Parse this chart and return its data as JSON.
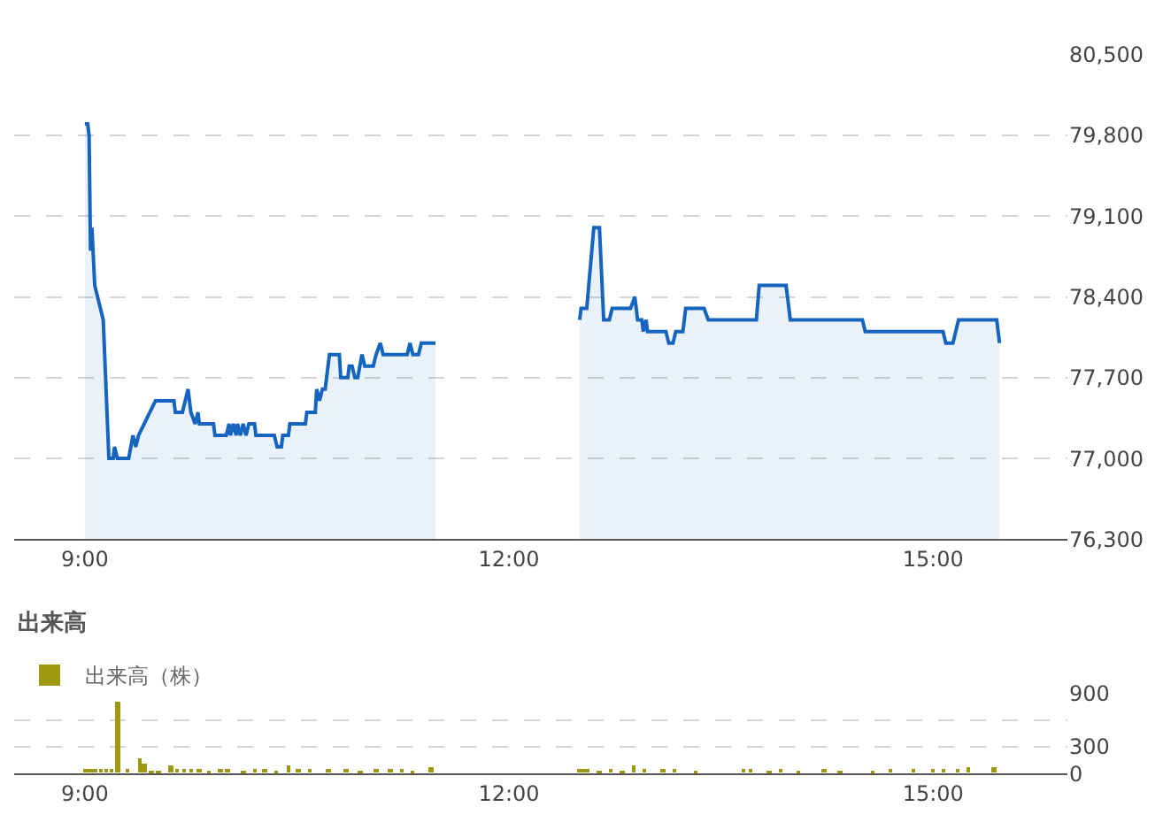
{
  "chart_data": [
    {
      "type": "area",
      "xlim": [
        8.5,
        15.95
      ],
      "xticks": [
        {
          "value": 9,
          "label": "9:00"
        },
        {
          "value": 12,
          "label": "12:00"
        },
        {
          "value": 15,
          "label": "15:00"
        }
      ],
      "ylim": [
        76300,
        80500
      ],
      "yticks": [
        {
          "value": 76300,
          "label": "76,300"
        },
        {
          "value": 77000,
          "label": "77,000"
        },
        {
          "value": 77700,
          "label": "77,700"
        },
        {
          "value": 78400,
          "label": "78,400"
        },
        {
          "value": 79100,
          "label": "79,100"
        },
        {
          "value": 79800,
          "label": "79,800"
        },
        {
          "value": 80500,
          "label": "80,500"
        }
      ],
      "grid": "y",
      "legend": false,
      "series": [
        {
          "color": "#1565c0",
          "x": [
            9.0,
            9.02,
            9.03,
            9.04,
            9.05,
            9.07,
            9.13,
            9.17,
            9.2,
            9.21,
            9.23,
            9.31,
            9.34,
            9.36,
            9.38,
            9.42,
            9.46,
            9.5,
            9.53,
            9.63,
            9.64,
            9.69,
            9.73,
            9.75,
            9.78,
            9.8,
            9.81,
            9.91,
            9.92,
            10.0,
            10.02,
            10.03,
            10.05,
            10.07,
            10.08,
            10.1,
            10.12,
            10.14,
            10.16,
            10.2,
            10.21,
            10.34,
            10.36,
            10.39,
            10.4,
            10.44,
            10.45,
            10.56,
            10.57,
            10.63,
            10.64,
            10.66,
            10.68,
            10.7,
            10.73,
            10.8,
            10.81,
            10.86,
            10.87,
            10.89,
            10.91,
            10.93,
            10.96,
            10.98,
            11.04,
            11.06,
            11.09,
            11.11,
            11.28,
            11.3,
            11.32,
            11.36,
            11.38,
            11.48,
            12.0,
            12.5,
            12.51,
            12.55,
            12.6,
            12.64,
            12.67,
            12.71,
            12.73,
            12.86,
            12.89,
            12.91,
            12.94,
            12.95,
            12.97,
            12.98,
            13.11,
            13.13,
            13.16,
            13.18,
            13.23,
            13.25,
            13.38,
            13.41,
            13.75,
            13.77,
            13.96,
            13.99,
            14.5,
            14.52,
            15.07,
            15.09,
            15.14,
            15.18,
            15.45,
            15.47
          ],
          "values": [
            79900,
            79900,
            79800,
            78800,
            79000,
            78500,
            78200,
            77000,
            77000,
            77100,
            77000,
            77000,
            77200,
            77100,
            77200,
            77300,
            77400,
            77500,
            77500,
            77500,
            77400,
            77400,
            77600,
            77400,
            77300,
            77400,
            77300,
            77300,
            77200,
            77200,
            77300,
            77200,
            77300,
            77200,
            77300,
            77200,
            77300,
            77200,
            77300,
            77300,
            77200,
            77200,
            77100,
            77100,
            77200,
            77200,
            77300,
            77300,
            77400,
            77400,
            77600,
            77500,
            77600,
            77600,
            77900,
            77900,
            77700,
            77700,
            77800,
            77800,
            77700,
            77700,
            77900,
            77800,
            77800,
            77900,
            78000,
            77900,
            77900,
            78000,
            77900,
            77900,
            78000,
            78000,
            null,
            78200,
            78300,
            78300,
            79000,
            79000,
            78200,
            78200,
            78300,
            78300,
            78400,
            78200,
            78200,
            78100,
            78200,
            78100,
            78100,
            78000,
            78000,
            78100,
            78100,
            78300,
            78300,
            78200,
            78200,
            78500,
            78500,
            78200,
            78200,
            78100,
            78100,
            78000,
            78000,
            78200,
            78200,
            78000
          ]
        }
      ]
    },
    {
      "type": "bar",
      "title": "出来高",
      "xlim": [
        8.5,
        15.95
      ],
      "xticks": [
        {
          "value": 9,
          "label": "9:00"
        },
        {
          "value": 12,
          "label": "12:00"
        },
        {
          "value": 15,
          "label": "15:00"
        }
      ],
      "ylim": [
        0,
        900
      ],
      "yticks": [
        0,
        300,
        {
          "value": 600,
          "label": null
        },
        900
      ],
      "grid": "y",
      "legend": "top left",
      "series": [
        {
          "name": "出来高（株）",
          "color": "#9e9a10",
          "x": [
            9.0,
            9.03,
            9.07,
            9.11,
            9.15,
            9.19,
            9.23,
            9.3,
            9.39,
            9.42,
            9.47,
            9.52,
            9.61,
            9.65,
            9.7,
            9.75,
            9.81,
            9.88,
            9.96,
            10.01,
            10.12,
            10.2,
            10.27,
            10.35,
            10.44,
            10.51,
            10.59,
            10.72,
            10.85,
            10.95,
            11.06,
            11.16,
            11.24,
            11.32,
            11.45,
            12.5,
            12.53,
            12.56,
            12.64,
            12.72,
            12.8,
            12.88,
            12.96,
            13.09,
            13.17,
            13.32,
            13.66,
            13.71,
            13.84,
            13.92,
            14.05,
            14.23,
            14.34,
            14.57,
            14.7,
            14.86,
            15.0,
            15.07,
            15.17,
            15.25,
            15.43
          ],
          "values": [
            50,
            50,
            50,
            50,
            50,
            50,
            800,
            50,
            160,
            100,
            30,
            30,
            80,
            50,
            50,
            50,
            40,
            30,
            40,
            40,
            30,
            40,
            40,
            30,
            80,
            40,
            40,
            50,
            40,
            30,
            40,
            40,
            40,
            30,
            60,
            50,
            50,
            50,
            30,
            40,
            30,
            80,
            50,
            40,
            40,
            30,
            40,
            50,
            30,
            40,
            30,
            40,
            30,
            30,
            40,
            40,
            50,
            50,
            50,
            60,
            70
          ]
        }
      ]
    }
  ]
}
